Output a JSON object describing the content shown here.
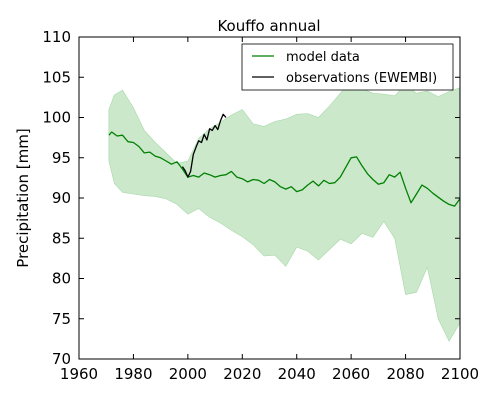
{
  "chart_data": {
    "type": "line",
    "title": "Kouffo annual",
    "xlabel": "",
    "ylabel": "Precipitation [mm]",
    "xlim": [
      1960,
      2100
    ],
    "ylim": [
      70,
      110
    ],
    "xticks": [
      1960,
      1980,
      2000,
      2020,
      2040,
      2060,
      2080,
      2100
    ],
    "yticks": [
      70,
      75,
      80,
      85,
      90,
      95,
      100,
      105,
      110
    ],
    "grid": false,
    "legend_position": "top-right",
    "colors": {
      "model": "#008000",
      "band": "#a8d8a8",
      "observations": "#000000"
    },
    "series": [
      {
        "name": "model data",
        "x": [
          1971,
          1972,
          1974,
          1976,
          1978,
          1980,
          1982,
          1984,
          1986,
          1988,
          1990,
          1992,
          1994,
          1996,
          1998,
          2000,
          2002,
          2004,
          2006,
          2008,
          2010,
          2012,
          2014,
          2016,
          2018,
          2020,
          2022,
          2024,
          2026,
          2028,
          2030,
          2032,
          2034,
          2036,
          2038,
          2040,
          2042,
          2044,
          2046,
          2048,
          2050,
          2052,
          2054,
          2056,
          2058,
          2060,
          2062,
          2064,
          2066,
          2068,
          2070,
          2072,
          2074,
          2076,
          2078,
          2080,
          2082,
          2084,
          2086,
          2088,
          2090,
          2092,
          2094,
          2096,
          2098,
          2100
        ],
        "values": [
          97.8,
          98.2,
          97.7,
          97.8,
          97.0,
          96.9,
          96.4,
          95.6,
          95.7,
          95.2,
          95.0,
          94.6,
          94.2,
          94.5,
          93.6,
          92.6,
          92.8,
          92.6,
          93.1,
          92.9,
          92.6,
          92.8,
          92.9,
          93.3,
          92.6,
          92.4,
          92.0,
          92.3,
          92.2,
          91.8,
          92.3,
          92.0,
          91.4,
          91.1,
          91.4,
          90.8,
          91.0,
          91.6,
          92.1,
          91.5,
          92.2,
          91.8,
          91.9,
          92.6,
          93.8,
          95.0,
          95.1,
          94.0,
          93.0,
          92.3,
          91.7,
          91.9,
          92.9,
          92.6,
          93.2,
          91.2,
          89.4,
          90.5,
          91.6,
          91.2,
          90.6,
          90.1,
          89.6,
          89.2,
          89.0,
          89.9
        ]
      },
      {
        "name": "observations (EWEMBI)",
        "x": [
          1998,
          1999,
          2000,
          2001,
          2002,
          2003,
          2004,
          2005,
          2006,
          2007,
          2008,
          2009,
          2010,
          2011,
          2012,
          2013,
          2014
        ],
        "values": [
          93.9,
          93.4,
          92.6,
          93.3,
          95.4,
          96.3,
          97.1,
          96.9,
          97.9,
          97.2,
          98.6,
          98.4,
          99.0,
          98.5,
          99.6,
          100.4,
          100.0
        ]
      },
      {
        "name": "",
        "role": "model range (shaded band)",
        "x": [
          1971,
          1973,
          1976,
          1980,
          1984,
          1988,
          1992,
          1996,
          2000,
          2004,
          2008,
          2012,
          2016,
          2020,
          2024,
          2028,
          2032,
          2036,
          2040,
          2044,
          2048,
          2052,
          2056,
          2060,
          2064,
          2068,
          2072,
          2076,
          2080,
          2084,
          2088,
          2092,
          2096,
          2100
        ],
        "upper": [
          101.0,
          102.8,
          103.4,
          101.2,
          98.4,
          96.9,
          95.6,
          94.3,
          94.6,
          97.4,
          98.6,
          99.4,
          100.3,
          101.0,
          99.2,
          98.9,
          99.5,
          99.8,
          100.4,
          100.5,
          100.0,
          101.4,
          103.0,
          104.6,
          103.6,
          103.0,
          102.9,
          102.7,
          104.1,
          103.0,
          103.3,
          102.6,
          103.2,
          103.7
        ],
        "lower": [
          94.6,
          91.8,
          90.7,
          90.5,
          90.3,
          90.2,
          89.9,
          89.2,
          88.0,
          88.7,
          87.6,
          86.9,
          86.0,
          85.2,
          84.2,
          82.8,
          82.9,
          81.5,
          83.9,
          83.4,
          82.3,
          83.6,
          84.9,
          84.3,
          85.6,
          85.1,
          87.1,
          85.0,
          78.0,
          78.3,
          81.4,
          75.0,
          72.2,
          74.5
        ]
      }
    ]
  }
}
